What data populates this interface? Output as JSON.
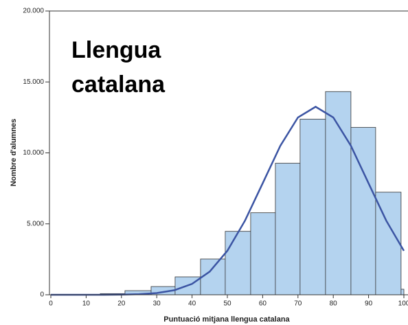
{
  "chart_data": {
    "type": "histogram",
    "title": "Llengua catalana",
    "xlabel": "Puntuació mitjana llengua catalana",
    "ylabel": "Nombre d'alumnes",
    "bins": [
      0,
      7,
      14,
      21,
      28.4,
      35.2,
      42.4,
      49.4,
      56.6,
      63.6,
      70.6,
      77.8,
      85,
      92,
      99.2,
      100
    ],
    "values": [
      0,
      20,
      80,
      290,
      580,
      1260,
      2520,
      4470,
      5780,
      9270,
      12380,
      14320,
      11800,
      7230,
      390
    ],
    "color": "#b4d3ef",
    "curve": {
      "color": "#3b54a3",
      "x": [
        0,
        5,
        10,
        15,
        20,
        25,
        30,
        35,
        40,
        45,
        50,
        55,
        60,
        65,
        70,
        75,
        80,
        85,
        90,
        95,
        100
      ],
      "values": [
        0,
        0,
        1,
        3,
        12,
        40,
        119,
        321,
        769,
        1634,
        3100,
        5226,
        7854,
        10500,
        12500,
        13250,
        12500,
        10500,
        7854,
        5226,
        3100
      ]
    },
    "xlim": [
      0,
      100
    ],
    "xticks": [
      0,
      10,
      20,
      30,
      40,
      50,
      60,
      70,
      80,
      90,
      100
    ],
    "ylim": [
      0,
      20000
    ],
    "yticks": [
      {
        "value": 0,
        "label": "0"
      },
      {
        "value": 5000,
        "label": "5.000"
      },
      {
        "value": 10000,
        "label": "10.000"
      },
      {
        "value": 15000,
        "label": "15.000"
      },
      {
        "value": 20000,
        "label": "20.000"
      }
    ]
  }
}
